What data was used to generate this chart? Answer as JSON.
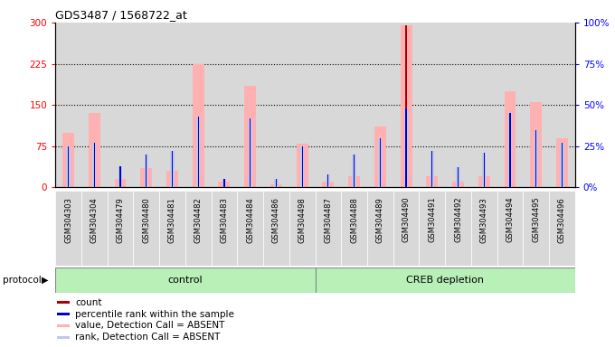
{
  "title": "GDS3487 / 1568722_at",
  "samples": [
    "GSM304303",
    "GSM304304",
    "GSM304479",
    "GSM304480",
    "GSM304481",
    "GSM304482",
    "GSM304483",
    "GSM304484",
    "GSM304486",
    "GSM304498",
    "GSM304487",
    "GSM304488",
    "GSM304489",
    "GSM304490",
    "GSM304491",
    "GSM304492",
    "GSM304493",
    "GSM304494",
    "GSM304495",
    "GSM304496"
  ],
  "value_absent": [
    100,
    135,
    15,
    35,
    30,
    225,
    10,
    185,
    5,
    80,
    10,
    20,
    110,
    295,
    20,
    10,
    20,
    175,
    155,
    90
  ],
  "rank_absent_pct": [
    25,
    27,
    13,
    20,
    22,
    43,
    5,
    42,
    5,
    25,
    8,
    20,
    30,
    48,
    22,
    12,
    21,
    45,
    35,
    27
  ],
  "count_red": [
    3,
    2,
    1,
    1,
    1,
    2,
    1,
    2,
    0,
    0,
    0,
    0,
    1,
    295,
    1,
    0,
    0,
    2,
    1,
    0
  ],
  "percentile_rank_pct": [
    25,
    27,
    13,
    20,
    22,
    43,
    5,
    42,
    5,
    25,
    8,
    20,
    30,
    48,
    22,
    12,
    21,
    45,
    35,
    27
  ],
  "control_count": 10,
  "creb_count": 10,
  "ylim_left": [
    0,
    300
  ],
  "ylim_right": [
    0,
    100
  ],
  "yticks_left": [
    0,
    75,
    150,
    225,
    300
  ],
  "yticks_right": [
    0,
    25,
    50,
    75,
    100
  ],
  "color_value_absent": "#ffb0b0",
  "color_rank_absent": "#c0c8e8",
  "color_count_red": "#aa0000",
  "color_rank_blue": "#0000cc",
  "color_protocol_green_light": "#b8f0b8",
  "color_protocol_green_dark": "#44cc44",
  "col_bg": "#d8d8d8",
  "plot_bg": "#ffffff",
  "grid_color": "#000000"
}
